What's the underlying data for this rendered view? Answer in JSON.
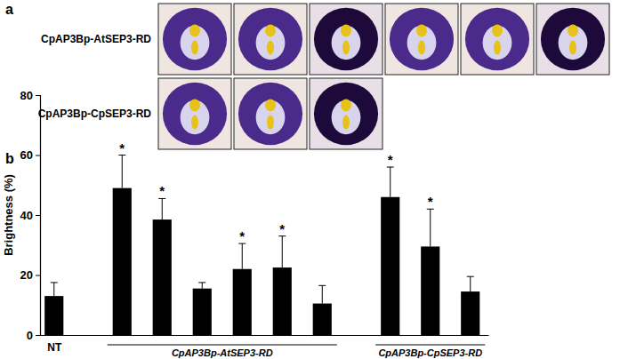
{
  "figure": {
    "panel_labels": [
      "a",
      "b"
    ],
    "rows": [
      {
        "label": "CpAP3Bp-AtSEP3-RD",
        "photos": 6
      },
      {
        "label": "CpAP3Bp-CpSEP3-RD",
        "photos": 3
      }
    ]
  },
  "chart_data": {
    "type": "bar",
    "y_label": "Brightness (%)",
    "categories": [
      "NT",
      null,
      null,
      null,
      null,
      null,
      null,
      null,
      null,
      null
    ],
    "values": [
      13,
      49,
      38.5,
      15.5,
      22,
      22.5,
      10.5,
      46,
      29.5,
      14.5
    ],
    "errors": [
      4.5,
      11,
      7,
      2,
      8.5,
      10.5,
      6,
      10,
      12.5,
      5
    ],
    "significance": [
      null,
      "*",
      "*",
      null,
      "*",
      "*",
      null,
      "*",
      "*",
      null
    ],
    "groups": [
      {
        "label": "CpAP3Bp-AtSEP3-RD",
        "size": 6
      },
      {
        "label": "CpAP3Bp-CpSEP3-RD",
        "size": 3
      }
    ],
    "color": "#000000",
    "ylim": [
      0,
      80
    ],
    "yticks": [
      0,
      20,
      40,
      60,
      80
    ],
    "grid": false
  }
}
